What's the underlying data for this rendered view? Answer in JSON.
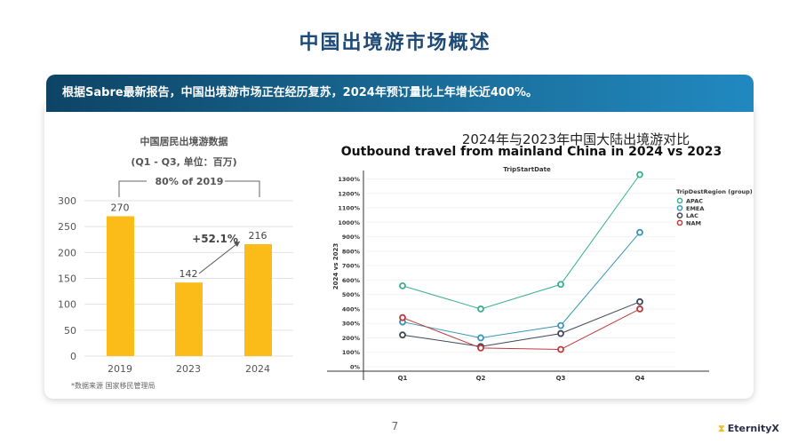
{
  "title": "中国出境游市场概述",
  "banner": "根据Sabre最新报告，中国出境游市场正在经历复苏，2024年预订量比上年增长近400%。",
  "page_number": "7",
  "logo": "EternityX",
  "chart_data": [
    {
      "type": "bar",
      "title": "中国居民出境游数据",
      "subtitle": "(Q1 - Q3, 单位：百万)",
      "categories": [
        "2019",
        "2023",
        "2024"
      ],
      "values": [
        270,
        142,
        216
      ],
      "data_labels": [
        "270",
        "142",
        "216"
      ],
      "ylim": [
        0,
        300
      ],
      "yticks": [
        0,
        50,
        100,
        150,
        200,
        250,
        300
      ],
      "grid": true,
      "color": "#fbbb18",
      "annotations": {
        "bracket": "80% of 2019",
        "growth": "+52.1%"
      },
      "source": "*数据来源 国家移民管理局"
    },
    {
      "type": "line",
      "title": "2024年与2023年中国大陆出境游对比",
      "subtitle": "Outbound travel from mainland China in 2024 vs 2023",
      "xlabel": "TripStartDate",
      "ylabel": "2024 vs 2023",
      "categories": [
        "Q1",
        "Q2",
        "Q3",
        "Q4"
      ],
      "ylim": [
        0,
        1300
      ],
      "yticks": [
        "0%",
        "100%",
        "200%",
        "300%",
        "400%",
        "500%",
        "600%",
        "700%",
        "800%",
        "900%",
        "1000%",
        "1100%",
        "1200%",
        "1300%"
      ],
      "legend_title": "TripDestRegion (group)",
      "legend_position": "right",
      "series": [
        {
          "name": "APAC",
          "color": "#3aaf8f",
          "values": [
            560,
            400,
            570,
            1330
          ]
        },
        {
          "name": "EMEA",
          "color": "#3a95b8",
          "values": [
            310,
            200,
            285,
            930
          ]
        },
        {
          "name": "LAC",
          "color": "#3d4756",
          "values": [
            220,
            140,
            230,
            450
          ]
        },
        {
          "name": "NAM",
          "color": "#c0393b",
          "values": [
            340,
            130,
            120,
            400
          ]
        }
      ]
    }
  ]
}
